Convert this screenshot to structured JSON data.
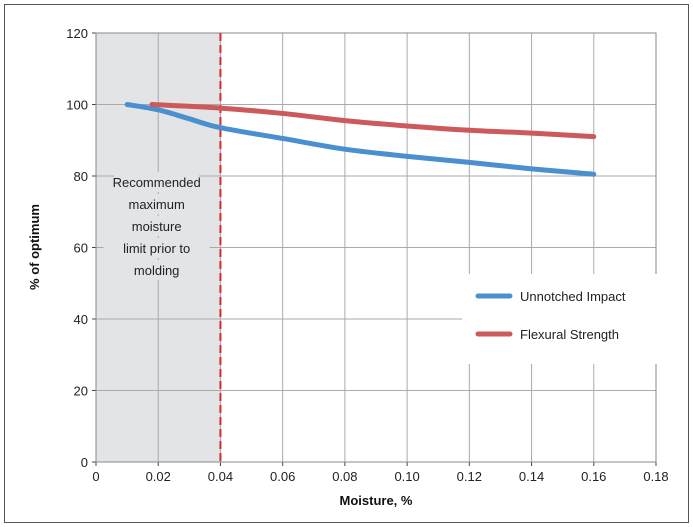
{
  "chart_data": {
    "type": "line",
    "xlabel": "Moisture, %",
    "ylabel": "% of optimum",
    "xlim": [
      0,
      0.18
    ],
    "ylim": [
      0,
      120
    ],
    "x_ticks": [
      "0",
      "0.02",
      "0.04",
      "0.06",
      "0.08",
      "0.10",
      "0.12",
      "0.14",
      "0.16",
      "0.18"
    ],
    "y_ticks": [
      "0",
      "20",
      "40",
      "60",
      "80",
      "100",
      "120"
    ],
    "grid": true,
    "legend_position": "right-middle",
    "shaded_region": {
      "x_range": [
        0,
        0.04
      ],
      "color": "#e3e4e6"
    },
    "limit_line": {
      "x": 0.04,
      "color": "#d62b2b",
      "style": "dashed"
    },
    "annotation": [
      "Recommended",
      "maximum",
      "moisture",
      "limit prior to",
      "molding"
    ],
    "series": [
      {
        "name": "Unnotched Impact",
        "color": "#4a90d0",
        "x": [
          0.01,
          0.02,
          0.03,
          0.04,
          0.06,
          0.08,
          0.1,
          0.12,
          0.14,
          0.16
        ],
        "y": [
          100,
          98.5,
          96,
          93.5,
          90.5,
          87.5,
          85.5,
          83.8,
          82,
          80.5
        ]
      },
      {
        "name": "Flexural Strength",
        "color": "#cc5a5a",
        "x": [
          0.018,
          0.04,
          0.06,
          0.08,
          0.1,
          0.12,
          0.14,
          0.16
        ],
        "y": [
          100,
          99,
          97.5,
          95.5,
          94,
          92.8,
          92,
          91
        ]
      }
    ]
  }
}
